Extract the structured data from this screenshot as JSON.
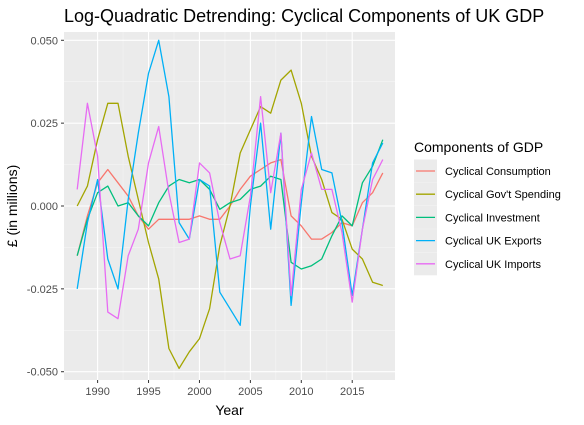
{
  "chart_data": {
    "type": "line",
    "title": "Log-Quadratic Detrending: Cyclical Components of UK GDP",
    "xlabel": "Year",
    "ylabel": "£ (in millions)",
    "xlim": [
      1986.7,
      2019.2
    ],
    "ylim": [
      -0.0525,
      0.0525
    ],
    "x_ticks": [
      1990,
      1995,
      2000,
      2005,
      2010,
      2015
    ],
    "y_ticks": [
      -0.05,
      -0.025,
      0.0,
      0.025,
      0.05
    ],
    "y_tick_labels": [
      "-0.050",
      "-0.025",
      "0.000",
      "0.025",
      "0.050"
    ],
    "grid": true,
    "legend_title": "Components of GDP",
    "legend_position": "right",
    "x": [
      1988,
      1989,
      1990,
      1991,
      1992,
      1993,
      1994,
      1995,
      1996,
      1997,
      1998,
      1999,
      2000,
      2001,
      2002,
      2003,
      2004,
      2005,
      2006,
      2007,
      2008,
      2009,
      2010,
      2011,
      2012,
      2013,
      2014,
      2015,
      2016,
      2017,
      2018
    ],
    "series": [
      {
        "name": "Cyclical Consumption",
        "color": "#F8766D",
        "values": [
          -0.015,
          -0.003,
          0.007,
          0.011,
          0.007,
          0.003,
          -0.003,
          -0.007,
          -0.004,
          -0.004,
          -0.004,
          -0.004,
          -0.003,
          -0.004,
          -0.004,
          0.0,
          0.005,
          0.009,
          0.011,
          0.013,
          0.014,
          -0.003,
          -0.006,
          -0.01,
          -0.01,
          -0.008,
          -0.005,
          -0.006,
          0.001,
          0.004,
          0.01
        ]
      },
      {
        "name": "Cyclical Gov't Spending",
        "color": "#A3A500",
        "values": [
          0.0,
          0.006,
          0.02,
          0.031,
          0.031,
          0.015,
          0.002,
          -0.011,
          -0.022,
          -0.043,
          -0.049,
          -0.044,
          -0.04,
          -0.031,
          -0.012,
          0.0,
          0.016,
          0.023,
          0.03,
          0.028,
          0.038,
          0.041,
          0.031,
          0.015,
          0.008,
          -0.002,
          -0.004,
          -0.013,
          -0.016,
          -0.023,
          -0.024
        ]
      },
      {
        "name": "Cyclical Investment",
        "color": "#00BF7D",
        "values": [
          -0.015,
          -0.004,
          0.004,
          0.006,
          0.0,
          0.001,
          -0.003,
          -0.006,
          0.001,
          0.006,
          0.008,
          0.007,
          0.008,
          0.005,
          -0.001,
          0.001,
          0.002,
          0.005,
          0.006,
          0.009,
          0.008,
          -0.017,
          -0.019,
          -0.018,
          -0.016,
          -0.009,
          -0.003,
          -0.006,
          0.007,
          0.012,
          0.02
        ]
      },
      {
        "name": "Cyclical UK Exports",
        "color": "#00B0F6",
        "values": [
          -0.025,
          -0.005,
          0.008,
          -0.016,
          -0.025,
          0.002,
          0.022,
          0.04,
          0.05,
          0.033,
          -0.005,
          -0.01,
          0.008,
          0.006,
          -0.026,
          -0.031,
          -0.036,
          0.0,
          0.025,
          -0.007,
          0.022,
          -0.03,
          0.001,
          0.027,
          0.011,
          0.01,
          -0.005,
          -0.027,
          -0.007,
          0.013,
          0.019
        ]
      },
      {
        "name": "Cyclical UK Imports",
        "color": "#E76BF3",
        "values": [
          0.005,
          0.031,
          0.015,
          -0.032,
          -0.034,
          -0.015,
          -0.007,
          0.013,
          0.024,
          0.004,
          -0.011,
          -0.01,
          0.013,
          0.01,
          -0.005,
          -0.016,
          -0.015,
          0.003,
          0.033,
          0.004,
          0.022,
          -0.027,
          0.005,
          0.016,
          0.005,
          0.005,
          -0.008,
          -0.029,
          -0.007,
          0.008,
          0.014
        ]
      }
    ]
  }
}
